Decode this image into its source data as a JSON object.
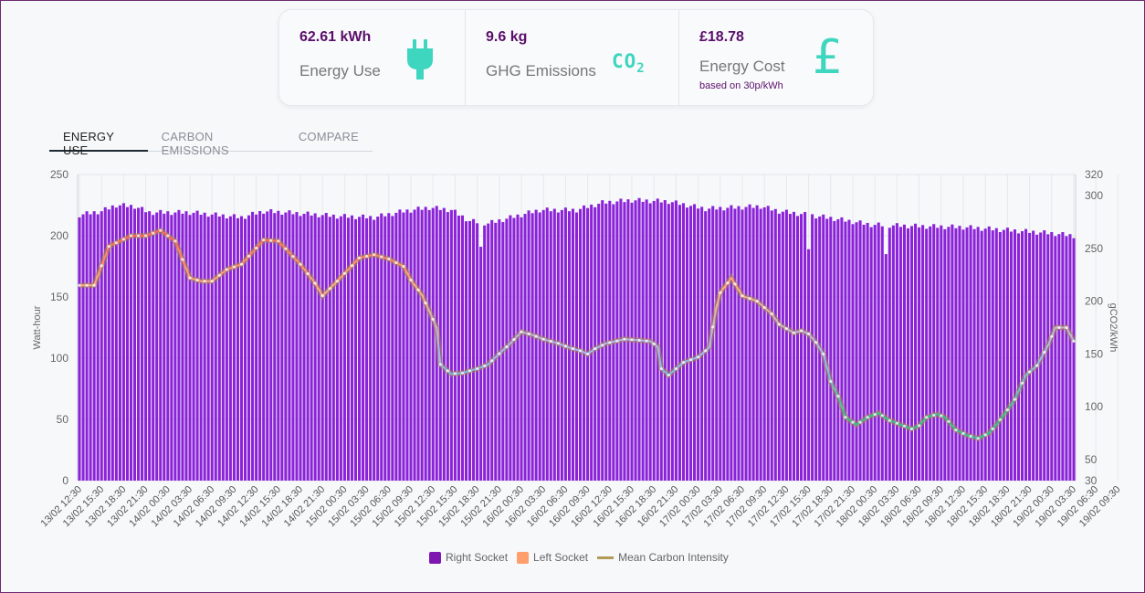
{
  "summary": {
    "energy": {
      "value": "62.61 kWh",
      "label": "Energy Use",
      "icon": "plug-icon"
    },
    "ghg": {
      "value": "9.6 kg",
      "label": "GHG Emissions",
      "icon": "co2-icon",
      "icon_text": "CO",
      "icon_sub": "2"
    },
    "cost": {
      "value": "£18.78",
      "label": "Energy Cost",
      "note": "based on 30p/kWh",
      "icon": "pound-icon",
      "icon_text": "£"
    }
  },
  "tabs": [
    {
      "label": "ENERGY USE",
      "active": true
    },
    {
      "label": "CARBON EMISSIONS",
      "active": false
    },
    {
      "label": "COMPARE",
      "active": false
    }
  ],
  "colors": {
    "accent": "#5a0e6b",
    "icon": "#3fd6c0",
    "right_socket": "#8b22d8",
    "left_socket": "#ff9f6b",
    "carbon": "#b09a55"
  },
  "chart_data": {
    "type": "bar",
    "ylabel": "Watt-hour",
    "y2label": "gCO2/kWh",
    "ylim": [
      0,
      250
    ],
    "yticks": [
      0,
      50,
      100,
      150,
      200,
      250
    ],
    "y2lim": [
      30,
      320
    ],
    "y2ticks": [
      30,
      50,
      100,
      150,
      200,
      250,
      300,
      320
    ],
    "x_start": "13/02 12:30",
    "x_step_minutes": 30,
    "x_tick_labels": [
      "13/02 12:30",
      "13/02 15:30",
      "13/02 18:30",
      "13/02 21:30",
      "14/02 00:30",
      "14/02 03:30",
      "14/02 06:30",
      "14/02 09:30",
      "14/02 12:30",
      "14/02 15:30",
      "14/02 18:30",
      "14/02 21:30",
      "15/02 00:30",
      "15/02 03:30",
      "15/02 06:30",
      "15/02 09:30",
      "15/02 12:30",
      "15/02 15:30",
      "15/02 18:30",
      "15/02 21:30",
      "16/02 00:30",
      "16/02 03:30",
      "16/02 06:30",
      "16/02 09:30",
      "16/02 12:30",
      "16/02 15:30",
      "16/02 18:30",
      "16/02 21:30",
      "17/02 00:30",
      "17/02 03:30",
      "17/02 06:30",
      "17/02 09:30",
      "17/02 12:30",
      "17/02 15:30",
      "17/02 18:30",
      "17/02 21:30",
      "18/02 00:30",
      "18/02 03:30",
      "18/02 06:30",
      "18/02 09:30",
      "18/02 12:30",
      "18/02 15:30",
      "18/02 18:30",
      "18/02 21:30",
      "19/02 00:30",
      "19/02 03:30",
      "19/02 06:30",
      "19/02 09:30"
    ],
    "legend": [
      {
        "name": "Right Socket",
        "kind": "box"
      },
      {
        "name": "Left Socket",
        "kind": "box"
      },
      {
        "name": "Mean Carbon Intensity",
        "kind": "line"
      }
    ],
    "legend_position": "bottom",
    "series": [
      {
        "name": "Right Socket",
        "axis": "left",
        "type": "bar",
        "keypoints": [
          [
            0,
            217
          ],
          [
            6,
            220
          ],
          [
            10,
            225
          ],
          [
            15,
            224
          ],
          [
            19,
            219
          ],
          [
            30,
            219
          ],
          [
            44,
            215
          ],
          [
            50,
            220
          ],
          [
            56,
            219
          ],
          [
            70,
            216
          ],
          [
            80,
            215
          ],
          [
            88,
            220
          ],
          [
            95,
            223
          ],
          [
            101,
            221
          ],
          [
            106,
            212
          ],
          [
            111,
            210
          ],
          [
            125,
            221
          ],
          [
            135,
            221
          ],
          [
            142,
            227
          ],
          [
            150,
            229
          ],
          [
            160,
            228
          ],
          [
            170,
            222
          ],
          [
            185,
            224
          ],
          [
            190,
            220
          ],
          [
            198,
            217
          ],
          [
            205,
            214
          ],
          [
            215,
            209
          ],
          [
            225,
            208
          ],
          [
            240,
            207
          ],
          [
            250,
            205
          ],
          [
            264,
            202
          ],
          [
            270,
            200
          ]
        ],
        "dips": [
          [
            109,
            191
          ],
          [
            198,
            189
          ],
          [
            219,
            185
          ]
        ]
      },
      {
        "name": "Left Socket",
        "axis": "left",
        "type": "bar",
        "value": 0
      },
      {
        "name": "Mean Carbon Intensity",
        "axis": "right",
        "type": "line",
        "keypoints": [
          [
            0,
            215
          ],
          [
            4,
            215
          ],
          [
            8,
            252
          ],
          [
            14,
            262
          ],
          [
            18,
            262
          ],
          [
            22,
            267
          ],
          [
            26,
            257
          ],
          [
            30,
            222
          ],
          [
            33,
            219
          ],
          [
            36,
            219
          ],
          [
            40,
            230
          ],
          [
            44,
            235
          ],
          [
            50,
            258
          ],
          [
            54,
            257
          ],
          [
            57,
            246
          ],
          [
            60,
            235
          ],
          [
            64,
            217
          ],
          [
            66,
            205
          ],
          [
            70,
            219
          ],
          [
            76,
            241
          ],
          [
            80,
            244
          ],
          [
            84,
            240
          ],
          [
            88,
            233
          ],
          [
            90,
            220
          ],
          [
            93,
            206
          ],
          [
            97,
            175
          ],
          [
            98,
            140
          ],
          [
            101,
            131
          ],
          [
            104,
            132
          ],
          [
            108,
            136
          ],
          [
            111,
            140
          ],
          [
            113,
            147
          ],
          [
            117,
            160
          ],
          [
            120,
            171
          ],
          [
            123,
            168
          ],
          [
            126,
            164
          ],
          [
            130,
            160
          ],
          [
            133,
            156
          ],
          [
            136,
            153
          ],
          [
            138,
            150
          ],
          [
            140,
            155
          ],
          [
            143,
            160
          ],
          [
            148,
            164
          ],
          [
            152,
            163
          ],
          [
            155,
            162
          ],
          [
            157,
            157
          ],
          [
            158,
            136
          ],
          [
            160,
            130
          ],
          [
            164,
            142
          ],
          [
            168,
            147
          ],
          [
            171,
            156
          ],
          [
            173,
            195
          ],
          [
            174,
            208
          ],
          [
            177,
            222
          ],
          [
            180,
            205
          ],
          [
            184,
            200
          ],
          [
            188,
            188
          ],
          [
            190,
            178
          ],
          [
            194,
            170
          ],
          [
            196,
            172
          ],
          [
            198,
            169
          ],
          [
            200,
            161
          ],
          [
            202,
            150
          ],
          [
            204,
            124
          ],
          [
            206,
            110
          ],
          [
            208,
            90
          ],
          [
            211,
            83
          ],
          [
            214,
            90
          ],
          [
            217,
            94
          ],
          [
            220,
            87
          ],
          [
            223,
            83
          ],
          [
            226,
            79
          ],
          [
            228,
            82
          ],
          [
            230,
            90
          ],
          [
            233,
            93
          ],
          [
            235,
            90
          ],
          [
            238,
            78
          ],
          [
            241,
            73
          ],
          [
            244,
            70
          ],
          [
            247,
            75
          ],
          [
            249,
            83
          ],
          [
            252,
            97
          ],
          [
            254,
            107
          ],
          [
            257,
            130
          ],
          [
            260,
            139
          ],
          [
            263,
            158
          ],
          [
            265,
            175
          ],
          [
            268,
            175
          ],
          [
            270,
            162
          ],
          [
            273,
            138
          ],
          [
            275,
            108
          ],
          [
            278,
            95
          ],
          [
            281,
            93
          ],
          [
            283,
            87
          ],
          [
            286,
            87
          ],
          [
            289,
            86
          ],
          [
            291,
            86
          ],
          [
            293,
            83
          ],
          [
            296,
            80
          ],
          [
            299,
            80
          ],
          [
            302,
            82
          ],
          [
            304,
            86
          ],
          [
            307,
            91
          ],
          [
            310,
            100
          ],
          [
            312,
            120
          ],
          [
            314,
            127
          ],
          [
            317,
            133
          ],
          [
            319,
            135
          ],
          [
            321,
            118
          ],
          [
            324,
            108
          ],
          [
            326,
            94
          ],
          [
            331,
            99
          ],
          [
            334,
            101
          ],
          [
            338,
            106
          ],
          [
            341,
            110
          ],
          [
            344,
            112
          ],
          [
            346,
            113
          ],
          [
            348,
            116
          ],
          [
            351,
            126
          ],
          [
            354,
            128
          ],
          [
            357,
            126
          ],
          [
            359,
            121
          ],
          [
            360,
            107
          ],
          [
            362,
            85
          ]
        ]
      }
    ]
  }
}
